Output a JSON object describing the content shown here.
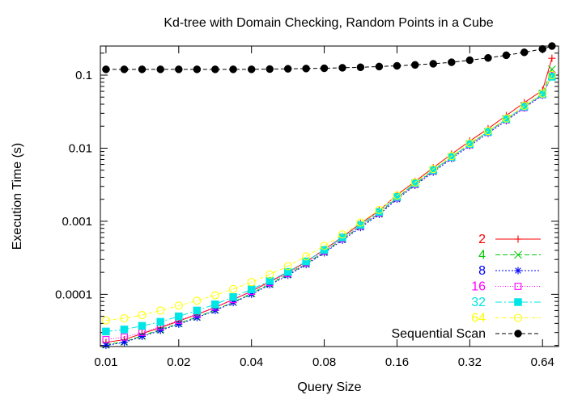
{
  "chart_data": {
    "type": "line",
    "title": "Kd-tree with Domain Checking, Random Points in a Cube",
    "xlabel": "Query Size",
    "ylabel": "Execution Time (s)",
    "x_scale": "log2",
    "y_scale": "log10",
    "xlim": [
      0.00948,
      0.7454
    ],
    "ylim": [
      1.93e-05,
      0.25
    ],
    "grid": false,
    "legend_position": "bottom-right",
    "x_ticks": [
      {
        "value": 0.01,
        "label": "0.01"
      },
      {
        "value": 0.02,
        "label": "0.02"
      },
      {
        "value": 0.04,
        "label": "0.04"
      },
      {
        "value": 0.08,
        "label": "0.08"
      },
      {
        "value": 0.16,
        "label": "0.16"
      },
      {
        "value": 0.32,
        "label": "0.32"
      },
      {
        "value": 0.64,
        "label": "0.64"
      }
    ],
    "y_ticks": [
      {
        "value": 0.0001,
        "label": "0.0001"
      },
      {
        "value": 0.001,
        "label": "0.001"
      },
      {
        "value": 0.01,
        "label": "0.01"
      },
      {
        "value": 0.1,
        "label": "0.1"
      }
    ],
    "x": [
      0.01,
      0.0119,
      0.0141,
      0.0168,
      0.02,
      0.0238,
      0.0283,
      0.0336,
      0.04,
      0.0476,
      0.0566,
      0.0673,
      0.08,
      0.0951,
      0.113,
      0.135,
      0.16,
      0.19,
      0.226,
      0.269,
      0.32,
      0.381,
      0.453,
      0.538,
      0.64,
      0.7
    ],
    "series": [
      {
        "name": "2",
        "color": "#ff0000",
        "marker": "plus",
        "dash": "",
        "values": [
          2.2e-05,
          2.4e-05,
          2.9e-05,
          3.5e-05,
          4.3e-05,
          5.3e-05,
          6.6e-05,
          8.5e-05,
          0.00011,
          0.00015,
          0.0002,
          0.00028,
          0.00041,
          0.00061,
          0.00093,
          0.0014,
          0.0023,
          0.0035,
          0.0054,
          0.0083,
          0.0125,
          0.0185,
          0.028,
          0.042,
          0.062,
          0.17
        ]
      },
      {
        "name": "4",
        "color": "#00cc00",
        "marker": "cross",
        "dash": "6,3",
        "values": [
          2.05e-05,
          2.25e-05,
          2.7e-05,
          3.3e-05,
          4e-05,
          4.9e-05,
          6.1e-05,
          7.8e-05,
          0.000103,
          0.000139,
          0.000187,
          0.000262,
          0.00038,
          0.00057,
          0.00085,
          0.00128,
          0.0021,
          0.0032,
          0.0049,
          0.0075,
          0.0113,
          0.0168,
          0.025,
          0.037,
          0.056,
          0.12
        ]
      },
      {
        "name": "8",
        "color": "#0000ff",
        "marker": "asterisk",
        "dash": "2,2",
        "values": [
          2e-05,
          2.2e-05,
          2.65e-05,
          3.2e-05,
          3.9e-05,
          4.8e-05,
          6e-05,
          7.7e-05,
          0.0001,
          0.000135,
          0.000182,
          0.000255,
          0.00037,
          0.00055,
          0.00082,
          0.00124,
          0.002,
          0.0031,
          0.0047,
          0.0072,
          0.0108,
          0.016,
          0.0238,
          0.0355,
          0.053,
          0.1
        ]
      },
      {
        "name": "16",
        "color": "#ff00ff",
        "marker": "square-open",
        "dash": "1,2",
        "values": [
          2.4e-05,
          2.6e-05,
          3e-05,
          3.6e-05,
          4.4e-05,
          5.4e-05,
          6.7e-05,
          8.5e-05,
          0.00011,
          0.000145,
          0.000193,
          0.00027,
          0.00039,
          0.00058,
          0.00086,
          0.0013,
          0.0021,
          0.0032,
          0.0049,
          0.0075,
          0.0112,
          0.0165,
          0.0245,
          0.036,
          0.054,
          0.1
        ]
      },
      {
        "name": "32",
        "color": "#00e5e5",
        "marker": "square-filled",
        "dash": "8,3,2,3",
        "values": [
          3.1e-05,
          3.3e-05,
          3.7e-05,
          4.2e-05,
          5e-05,
          6e-05,
          7.3e-05,
          9.2e-05,
          0.000117,
          0.000153,
          0.000203,
          0.000282,
          0.000405,
          0.0006,
          0.00089,
          0.00134,
          0.00215,
          0.0033,
          0.005,
          0.0076,
          0.0114,
          0.0168,
          0.025,
          0.037,
          0.055,
          0.095
        ]
      },
      {
        "name": "64",
        "color": "#ffff00",
        "marker": "circle-open",
        "dash": "4,2,1,2",
        "values": [
          4.4e-05,
          4.7e-05,
          5.2e-05,
          6e-05,
          7e-05,
          8.2e-05,
          9.7e-05,
          0.000118,
          0.000147,
          0.000187,
          0.000243,
          0.00033,
          0.00046,
          0.00066,
          0.00096,
          0.00143,
          0.00225,
          0.0034,
          0.0052,
          0.0078,
          0.0117,
          0.0172,
          0.0255,
          0.038,
          0.056,
          0.1
        ]
      },
      {
        "name": "Sequential Scan",
        "color": "#000000",
        "marker": "circle-filled",
        "dash": "5,3",
        "values": [
          0.12,
          0.12,
          0.12,
          0.12,
          0.12,
          0.12,
          0.12,
          0.12,
          0.12,
          0.121,
          0.122,
          0.123,
          0.124,
          0.126,
          0.128,
          0.131,
          0.134,
          0.138,
          0.143,
          0.15,
          0.16,
          0.172,
          0.187,
          0.205,
          0.228,
          0.25
        ]
      }
    ]
  }
}
